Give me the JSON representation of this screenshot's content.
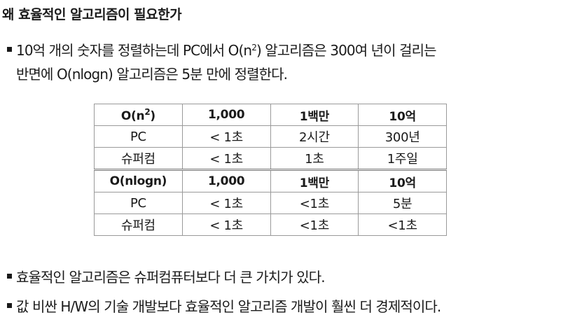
{
  "heading": "왜 효율적인 알고리즘이 필요한가",
  "bullets": {
    "b1": {
      "line1_a": "10억 개의 숫자를 정렬하는데 PC에서 O(n",
      "line1_sup": "2",
      "line1_b": ") 알고리즘은 300여 년이 걸리는",
      "line2": "반면에 O(nlogn) 알고리즘은 5분 만에 정렬한다."
    },
    "b2": "효율적인 알고리즘은 슈퍼컴퓨터보다 더 큰 가치가 있다.",
    "b3": "값 비싼 H/W의 기술 개발보다 효율적인 알고리즘 개발이 훨씬 더 경제적이다."
  },
  "table": {
    "header1": {
      "label_a": "O(n",
      "label_sup": "2",
      "label_b": ")",
      "c1": "1,000",
      "c2": "1백만",
      "c3": "10억"
    },
    "rows1": [
      {
        "label": "PC",
        "c1": "< 1초",
        "c2": "2시간",
        "c3": "300년"
      },
      {
        "label": "슈퍼컴",
        "c1": "< 1초",
        "c2": "1초",
        "c3": "1주일"
      }
    ],
    "header2": {
      "label": "O(nlogn)",
      "c1": "1,000",
      "c2": "1백만",
      "c3": "10억"
    },
    "rows2": [
      {
        "label": "PC",
        "c1": "< 1초",
        "c2": "<1초",
        "c3": "5분"
      },
      {
        "label": "슈퍼컴",
        "c1": "< 1초",
        "c2": "<1초",
        "c3": "<1초"
      }
    ]
  }
}
